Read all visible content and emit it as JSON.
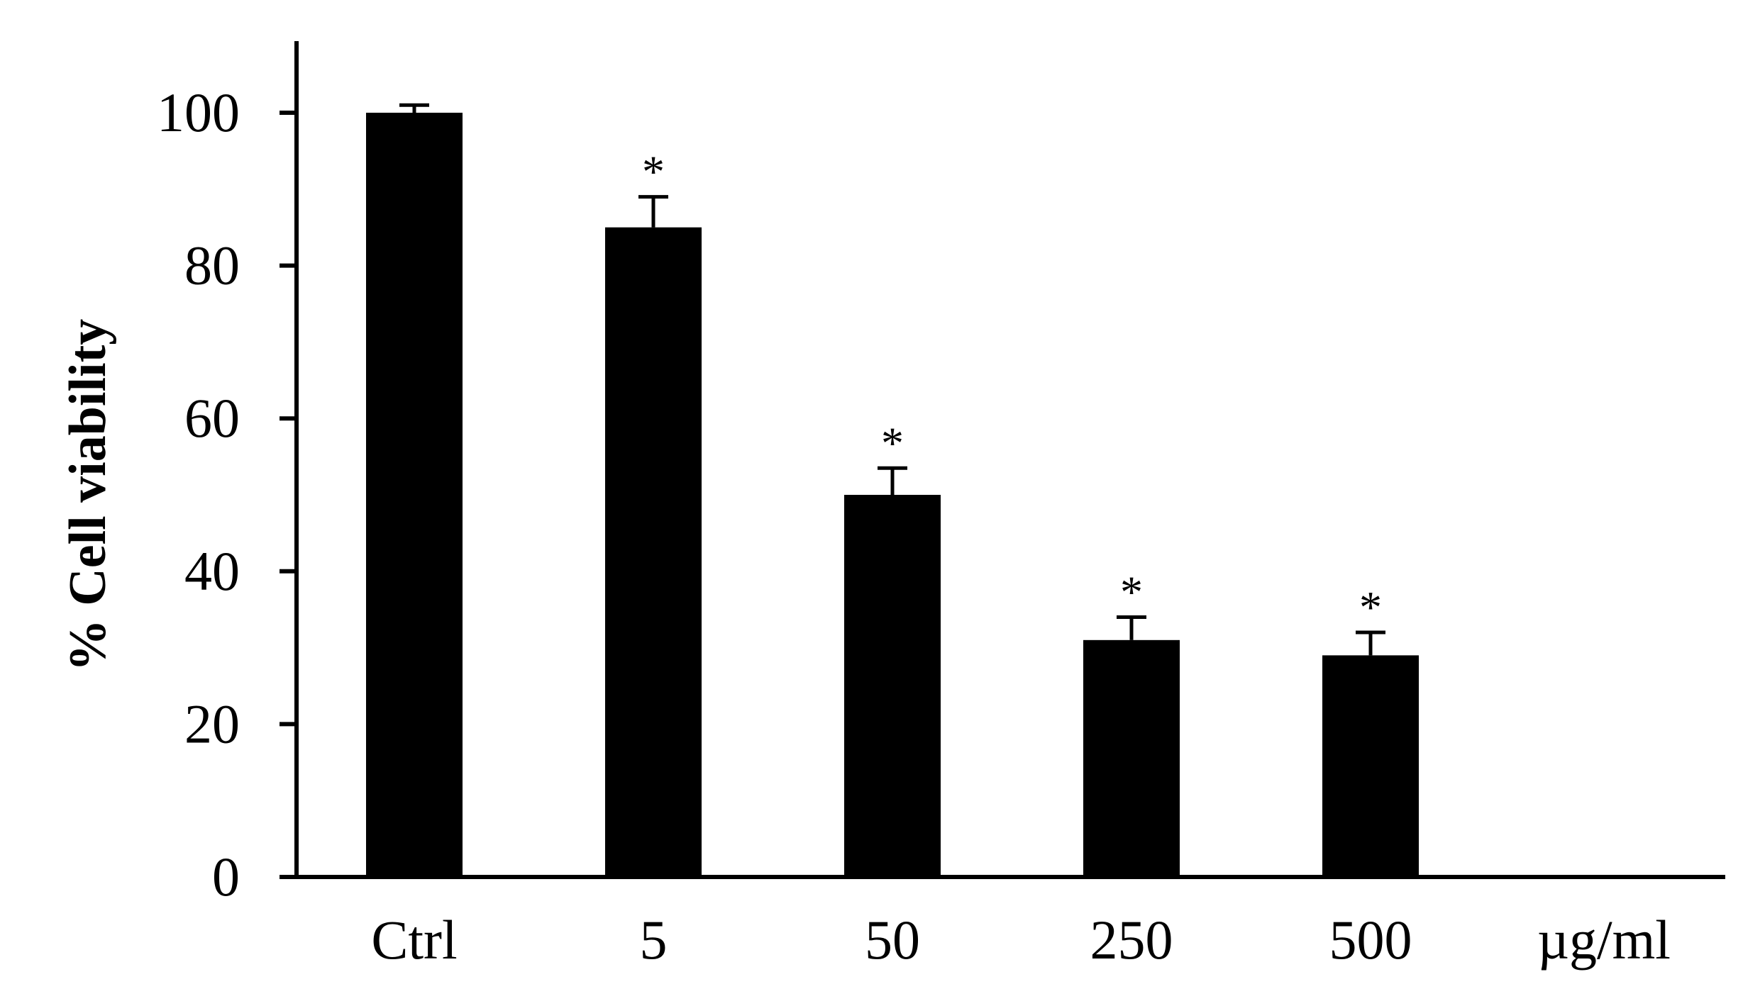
{
  "chart_data": {
    "type": "bar",
    "categories": [
      "Ctrl",
      "5",
      "50",
      "250",
      "500"
    ],
    "values": [
      100,
      85,
      50,
      31,
      29
    ],
    "errors": [
      1,
      4,
      3.5,
      3,
      3
    ],
    "significance": [
      "",
      "*",
      "*",
      "*",
      "*"
    ],
    "title": "",
    "xlabel": "",
    "x_unit_label": "µg/ml",
    "ylabel": "% Cell viability",
    "ylim": [
      0,
      110
    ],
    "yticks": [
      0,
      20,
      40,
      60,
      80,
      100
    ],
    "grid": false,
    "legend": "none",
    "bar_color": "#000000"
  }
}
